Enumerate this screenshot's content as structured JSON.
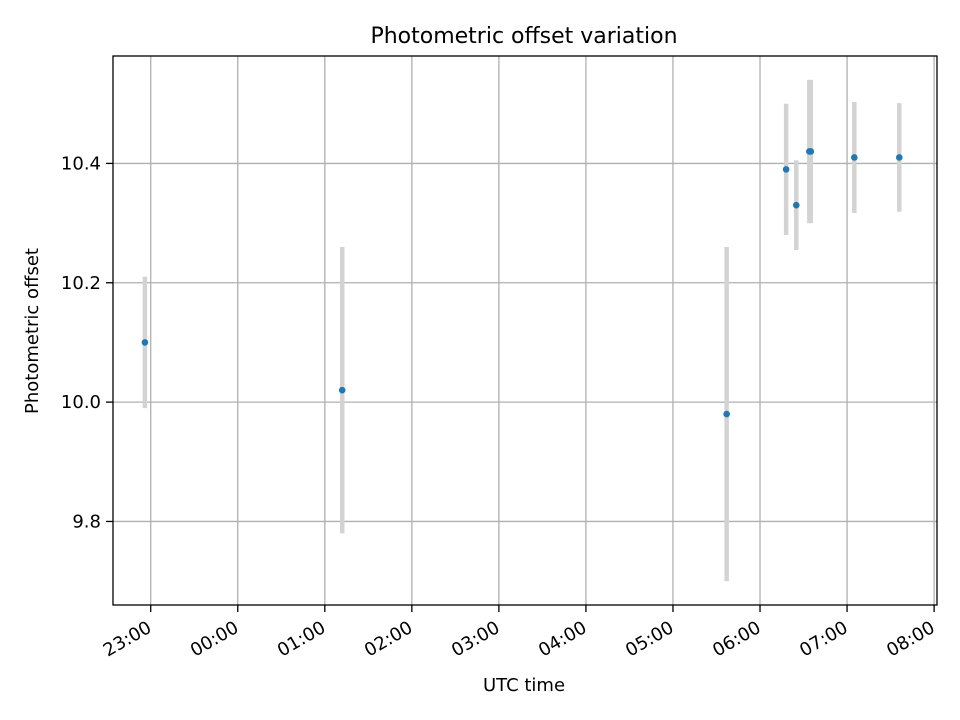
{
  "chart_data": {
    "type": "scatter",
    "title": "Photometric offset variation",
    "xlabel": "UTC time",
    "ylabel": "Photometric offset",
    "x_ticks": [
      "23:00",
      "00:00",
      "01:00",
      "02:00",
      "03:00",
      "04:00",
      "05:00",
      "06:00",
      "07:00",
      "08:00"
    ],
    "y_ticks": [
      9.8,
      10.0,
      10.2,
      10.4
    ],
    "xlim": [
      "22:34",
      "08:02"
    ],
    "ylim": [
      9.66,
      10.58
    ],
    "grid": true,
    "series": [
      {
        "marker_color": "#1f77b4",
        "errorbar_color": "#d3d3d3",
        "points": [
          {
            "x": "22:56",
            "y": 10.1,
            "err": 0.11
          },
          {
            "x": "01:12",
            "y": 10.02,
            "err": 0.24
          },
          {
            "x": "05:37",
            "y": 9.98,
            "err": 0.28
          },
          {
            "x": "06:18",
            "y": 10.39,
            "err": 0.11
          },
          {
            "x": "06:25",
            "y": 10.33,
            "err": 0.075
          },
          {
            "x": "06:34",
            "y": 10.42,
            "err": 0.12
          },
          {
            "x": "06:35",
            "y": 10.42,
            "err": 0.12
          },
          {
            "x": "07:05",
            "y": 10.41,
            "err": 0.093
          },
          {
            "x": "07:36",
            "y": 10.41,
            "err": 0.091
          }
        ]
      }
    ]
  }
}
